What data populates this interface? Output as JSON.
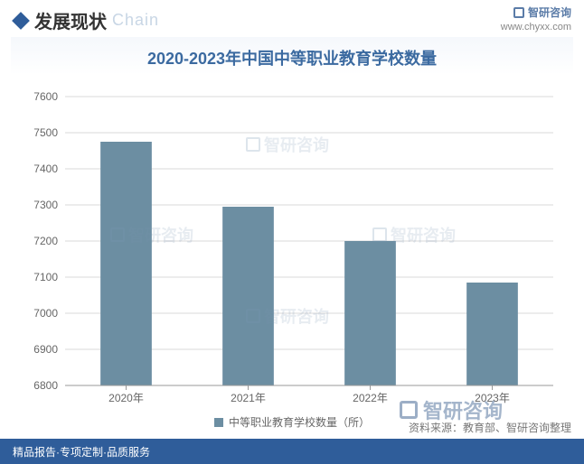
{
  "header": {
    "title_cn": "发展现状",
    "title_en": "Chain",
    "brand": "智研咨询",
    "brand_url": "www.chyxx.com"
  },
  "chart": {
    "type": "bar",
    "title": "2020-2023年中国中等职业教育学校数量",
    "title_color": "#3b6aa0",
    "title_fontsize": 18,
    "categories": [
      "2020年",
      "2021年",
      "2022年",
      "2023年"
    ],
    "values": [
      7475,
      7295,
      7200,
      7085
    ],
    "bar_color": "#6c8ea2",
    "bar_width_ratio": 0.42,
    "ylim": [
      6800,
      7600
    ],
    "ytick_step": 100,
    "yticks": [
      6800,
      6900,
      7000,
      7100,
      7200,
      7300,
      7400,
      7500,
      7600
    ],
    "grid_color": "#d9d9d9",
    "axis_font_color": "#666",
    "axis_fontsize": 12,
    "background_color": "#ffffff",
    "legend_label": "中等职业教育学校数量（所）"
  },
  "source": "资料来源：教育部、智研咨询整理",
  "footer": {
    "left": "精品报告·专项定制·品质服务",
    "right": ""
  },
  "watermark_text": "智研咨询"
}
